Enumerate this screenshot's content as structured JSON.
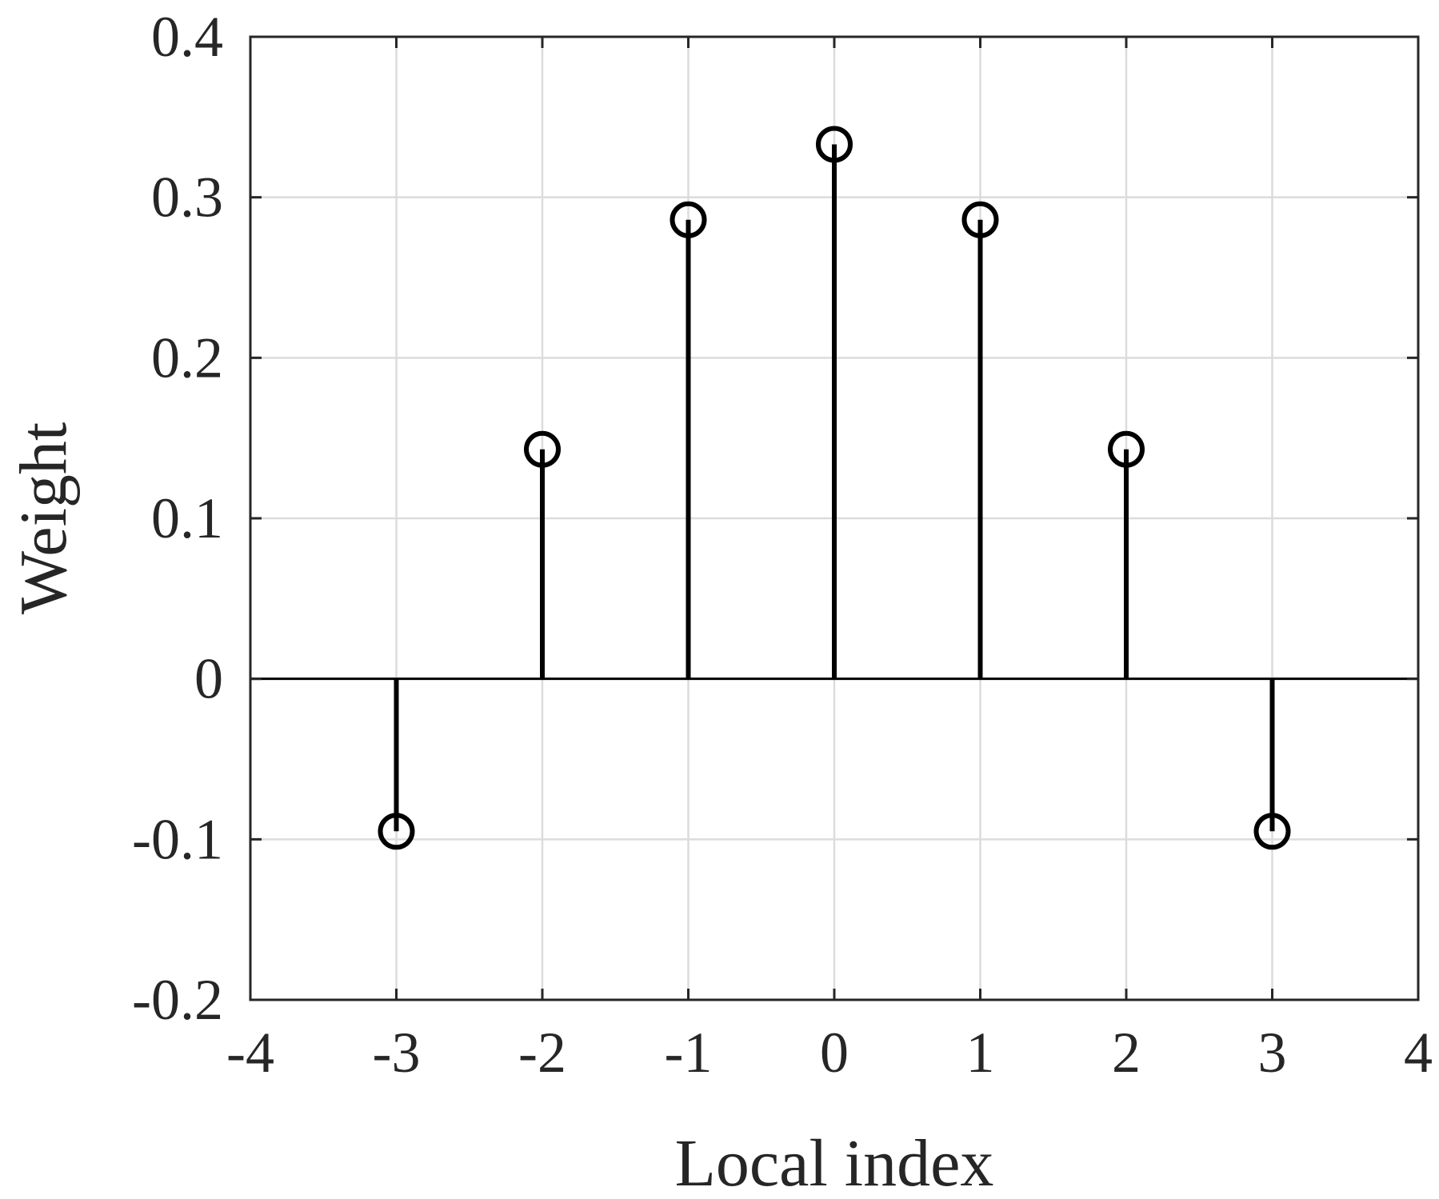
{
  "chart_data": {
    "type": "stem",
    "title": "",
    "xlabel": "Local index",
    "ylabel": "Weight",
    "xlim": [
      -4,
      4
    ],
    "ylim": [
      -0.2,
      0.4
    ],
    "xticks": [
      "-4",
      "-3",
      "-2",
      "-1",
      "0",
      "1",
      "2",
      "3",
      "4"
    ],
    "yticks": [
      "-0.2",
      "-0.1",
      "0",
      "0.1",
      "0.2",
      "0.3",
      "0.4"
    ],
    "grid": true,
    "x": [
      -3,
      -2,
      -1,
      0,
      1,
      2,
      3
    ],
    "values": [
      -0.095,
      0.143,
      0.286,
      0.333,
      0.286,
      0.143,
      -0.095
    ],
    "marker": "open-circle",
    "colors": {
      "stem": "#000000",
      "axes": "#262626",
      "grid": "#dcdcdc"
    }
  }
}
